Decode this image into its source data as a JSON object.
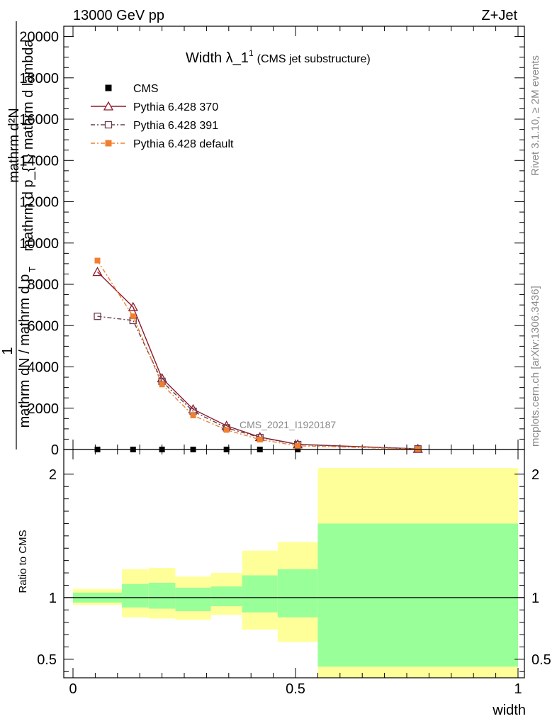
{
  "header": {
    "left": "13000 GeV pp",
    "right": "Z+Jet"
  },
  "side_notes": {
    "rivet": "Rivet 3.1.10, ≥ 2M events",
    "mcplots": "mcplots.cern.ch [arXiv:1306.3436]"
  },
  "watermark": "CMS_2021_I1920187",
  "chart_data": [
    {
      "type": "line",
      "title_main": "Width λ_1",
      "title_sup": "1",
      "title_sub": "(CMS jet substructure)",
      "ylabel_parts": {
        "top": "mathrm d²N",
        "bottom": "mathrm d p_{T} mathrm d lambda",
        "ratio_num": "1",
        "ratio_den": "mathrm dN / mathrm d p",
        "ratio_sub": "T"
      },
      "xlim": [
        0,
        1
      ],
      "ylim": [
        0,
        20500
      ],
      "y_ticks": [
        0,
        2000,
        4000,
        6000,
        8000,
        10000,
        12000,
        14000,
        16000,
        18000,
        20000
      ],
      "y_tick_labels": [
        "0",
        "2000",
        "4000",
        "6000",
        "8000",
        "10000",
        "12000",
        "14000",
        "16000",
        "18000",
        "20000"
      ],
      "legend": "top-left",
      "series": [
        {
          "name": "CMS",
          "color": "#000000",
          "marker": "filled-square",
          "x": [
            0.055,
            0.135,
            0.2,
            0.27,
            0.345,
            0.42,
            0.505,
            0.775
          ],
          "y": [
            0,
            0,
            0,
            0,
            0,
            0,
            0,
            0
          ]
        },
        {
          "name": "Pythia 6.428 370",
          "color": "#8b1a2b",
          "marker": "open-triangle",
          "x": [
            0.055,
            0.135,
            0.2,
            0.27,
            0.345,
            0.42,
            0.505,
            0.775
          ],
          "y": [
            8600,
            6900,
            3450,
            1950,
            1150,
            600,
            250,
            30
          ]
        },
        {
          "name": "Pythia 6.428 391",
          "color": "#6b3d50",
          "marker": "open-square",
          "x": [
            0.055,
            0.135,
            0.2,
            0.27,
            0.345,
            0.42,
            0.505,
            0.775
          ],
          "y": [
            6450,
            6250,
            3300,
            1850,
            1050,
            580,
            240,
            30
          ]
        },
        {
          "name": "Pythia 6.428 default",
          "color": "#f08030",
          "marker": "filled-square",
          "x": [
            0.055,
            0.135,
            0.2,
            0.27,
            0.345,
            0.42,
            0.505,
            0.775
          ],
          "y": [
            9150,
            6450,
            3150,
            1650,
            950,
            480,
            180,
            20
          ]
        }
      ]
    },
    {
      "type": "area",
      "ylabel": "Ratio to CMS",
      "xlabel": "width",
      "xlim": [
        0,
        1
      ],
      "ylim": [
        0.35,
        2.2
      ],
      "y_ticks": [
        0.5,
        1,
        2
      ],
      "y_tick_labels": [
        "0.5",
        "1",
        "2"
      ],
      "x_ticks": [
        0,
        0.5,
        1
      ],
      "x_tick_labels": [
        "0",
        "0.5",
        "1"
      ],
      "reference": 1,
      "bands": {
        "outer_color": "#ffff99",
        "inner_color": "#99ff99",
        "bins": [
          {
            "x0": 0.0,
            "x1": 0.11,
            "inner": [
              0.96,
              1.04
            ],
            "outer": [
              0.94,
              1.07
            ]
          },
          {
            "x0": 0.11,
            "x1": 0.17,
            "inner": [
              0.92,
              1.11
            ],
            "outer": [
              0.84,
              1.23
            ]
          },
          {
            "x0": 0.17,
            "x1": 0.23,
            "inner": [
              0.91,
              1.12
            ],
            "outer": [
              0.83,
              1.24
            ]
          },
          {
            "x0": 0.23,
            "x1": 0.31,
            "inner": [
              0.89,
              1.08
            ],
            "outer": [
              0.82,
              1.17
            ]
          },
          {
            "x0": 0.31,
            "x1": 0.38,
            "inner": [
              0.93,
              1.09
            ],
            "outer": [
              0.86,
              1.2
            ]
          },
          {
            "x0": 0.38,
            "x1": 0.46,
            "inner": [
              0.88,
              1.18
            ],
            "outer": [
              0.74,
              1.38
            ]
          },
          {
            "x0": 0.46,
            "x1": 0.55,
            "inner": [
              0.84,
              1.23
            ],
            "outer": [
              0.64,
              1.45
            ]
          },
          {
            "x0": 0.55,
            "x1": 1.0,
            "inner": [
              0.44,
              1.6
            ],
            "outer": [
              0.35,
              2.05
            ]
          }
        ]
      }
    }
  ]
}
